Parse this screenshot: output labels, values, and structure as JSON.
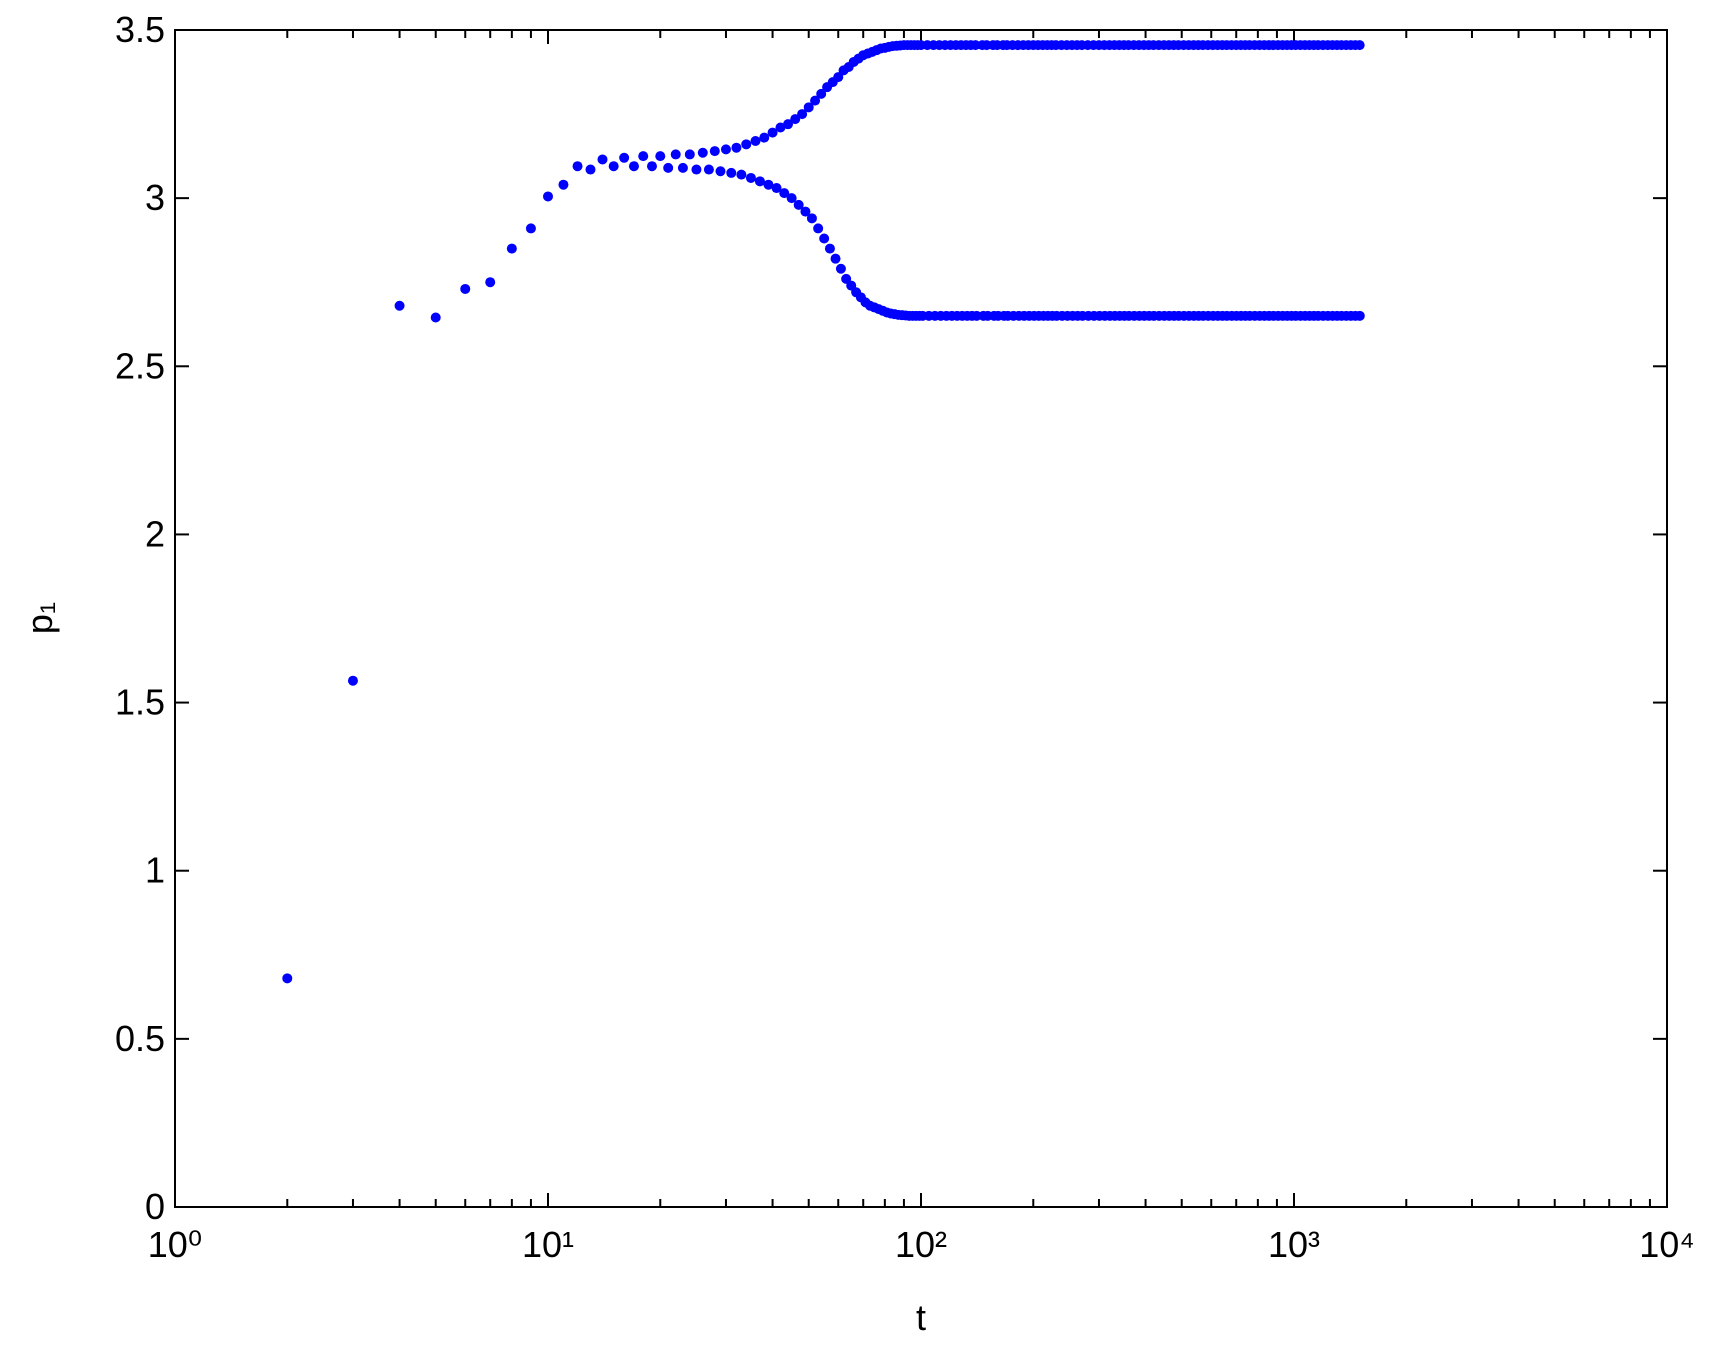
{
  "chart_data": {
    "type": "scatter",
    "xlabel": "t",
    "ylabel": "p₁",
    "xscale": "log",
    "xlim": [
      1,
      10000
    ],
    "xticks": [
      {
        "value": 1,
        "label": "10⁰"
      },
      {
        "value": 10,
        "label": "10¹"
      },
      {
        "value": 100,
        "label": "10²"
      },
      {
        "value": 1000,
        "label": "10³"
      },
      {
        "value": 10000,
        "label": "10⁴"
      }
    ],
    "minor_ticks": true,
    "ylim": [
      0,
      3.5
    ],
    "yticks": [
      0,
      0.5,
      1,
      1.5,
      2,
      2.5,
      3,
      3.5
    ],
    "grid": false,
    "color": "#0000ff",
    "x": [
      2,
      3,
      4,
      5,
      6,
      7,
      8,
      9,
      10,
      11,
      12,
      13,
      14,
      15,
      16,
      17,
      18,
      19,
      20,
      21,
      22,
      23,
      24,
      25,
      26,
      27,
      28,
      29,
      30,
      31,
      32,
      33,
      34,
      35,
      36,
      37,
      38,
      39,
      40,
      41,
      42,
      43,
      44,
      45,
      46,
      47,
      48,
      49,
      50,
      51,
      52,
      53,
      54,
      55,
      56,
      57,
      58,
      59,
      60,
      61,
      62,
      63,
      64,
      65,
      66,
      67,
      68,
      69,
      70,
      71,
      72,
      73,
      74,
      75,
      76,
      77,
      78,
      79,
      80,
      81,
      82,
      83,
      84,
      85,
      86,
      87,
      88,
      89,
      90,
      91,
      92,
      93,
      94,
      95,
      96,
      97,
      98,
      99,
      100,
      101,
      104,
      105,
      108,
      109,
      112,
      113,
      116,
      117,
      120,
      121,
      124,
      125,
      128,
      129,
      132,
      133,
      136,
      137,
      140,
      141,
      146,
      147,
      150,
      151,
      156,
      157,
      160,
      161,
      166,
      167,
      170,
      171,
      176,
      177,
      182,
      183,
      188,
      189,
      194,
      195,
      200,
      201,
      206,
      207,
      212,
      213,
      218,
      219,
      224,
      225,
      230,
      231,
      238,
      239,
      246,
      247,
      254,
      255,
      262,
      263,
      270,
      271,
      280,
      281,
      290,
      291,
      300,
      301,
      310,
      311,
      320,
      321,
      330,
      331,
      340,
      341,
      350,
      351,
      360,
      361,
      372,
      373,
      384,
      385,
      396,
      397,
      408,
      409,
      420,
      421,
      434,
      435,
      448,
      449,
      462,
      463,
      476,
      477,
      490,
      491,
      506,
      507,
      522,
      523,
      538,
      539,
      554,
      555,
      570,
      571,
      588,
      589,
      606,
      607,
      624,
      625,
      642,
      643,
      660,
      661,
      680,
      681,
      700,
      701,
      720,
      721,
      740,
      741,
      760,
      761,
      784,
      785,
      808,
      809,
      832,
      833,
      856,
      857,
      880,
      881,
      906,
      907,
      932,
      933,
      958,
      959,
      984,
      985,
      1010,
      1011,
      1040,
      1041,
      1070,
      1071,
      1100,
      1101,
      1130,
      1131,
      1160,
      1161,
      1196,
      1197,
      1232,
      1233,
      1268,
      1269,
      1304,
      1305,
      1340,
      1341,
      1380,
      1381,
      1420,
      1421,
      1460,
      1461,
      1500,
      1501
    ],
    "values": [
      0.68,
      1.565,
      2.68,
      2.645,
      2.73,
      2.75,
      2.85,
      2.91,
      3.005,
      3.04,
      3.095,
      3.085,
      3.115,
      3.095,
      3.12,
      3.095,
      3.125,
      3.095,
      3.125,
      3.09,
      3.13,
      3.09,
      3.13,
      3.085,
      3.135,
      3.085,
      3.14,
      3.08,
      3.145,
      3.075,
      3.15,
      3.07,
      3.16,
      3.06,
      3.17,
      3.05,
      3.18,
      3.04,
      3.195,
      3.03,
      3.21,
      3.015,
      3.22,
      3.0,
      3.235,
      2.98,
      3.25,
      2.96,
      3.27,
      2.94,
      3.29,
      2.91,
      3.31,
      2.88,
      3.33,
      2.85,
      3.345,
      2.82,
      3.36,
      2.79,
      3.38,
      2.76,
      3.39,
      2.74,
      3.405,
      2.72,
      3.415,
      2.705,
      3.425,
      2.69,
      3.43,
      2.68,
      3.435,
      2.675,
      3.44,
      2.67,
      3.445,
      2.665,
      3.447,
      2.66,
      3.45,
      2.657,
      3.452,
      2.655,
      3.453,
      2.653,
      3.454,
      2.652,
      3.455,
      2.651,
      3.455,
      2.65,
      3.455,
      2.65,
      3.455,
      2.65,
      3.455,
      2.65,
      3.455,
      2.65,
      3.455,
      2.65,
      3.455,
      2.65,
      3.455,
      2.65,
      3.455,
      2.65,
      3.455,
      2.65,
      3.455,
      2.65,
      3.455,
      2.65,
      3.455,
      2.65,
      3.455,
      2.65,
      3.455,
      2.65,
      3.455,
      2.65,
      3.455,
      2.65,
      3.455,
      2.65,
      3.455,
      2.65,
      3.455,
      2.65,
      3.455,
      2.65,
      3.455,
      2.65,
      3.455,
      2.65,
      3.455,
      2.65,
      3.455,
      2.65,
      3.455,
      2.65,
      3.455,
      2.65,
      3.455,
      2.65,
      3.455,
      2.65,
      3.455,
      2.65,
      3.455,
      2.65,
      3.455,
      2.65,
      3.455,
      2.65,
      3.455,
      2.65,
      3.455,
      2.65,
      3.455,
      2.65,
      3.455,
      2.65,
      3.455,
      2.65,
      3.455,
      2.65,
      3.455,
      2.65,
      3.455,
      2.65,
      3.455,
      2.65,
      3.455,
      2.65,
      3.455,
      2.65,
      3.455,
      2.65,
      3.455,
      2.65,
      3.455,
      2.65,
      3.455,
      2.65,
      3.455,
      2.65,
      3.455,
      2.65,
      3.455,
      2.65,
      3.455,
      2.65,
      3.455,
      2.65,
      3.455,
      2.65,
      3.455,
      2.65,
      3.455,
      2.65,
      3.455,
      2.65,
      3.455,
      2.65,
      3.455,
      2.65,
      3.455,
      2.65,
      3.455,
      2.65,
      3.455,
      2.65,
      3.455,
      2.65,
      3.455,
      2.65,
      3.455,
      2.65,
      3.455,
      2.65,
      3.455,
      2.65,
      3.455,
      2.65,
      3.455,
      2.65,
      3.455,
      2.65,
      3.455,
      2.65,
      3.455,
      2.65,
      3.455,
      2.65,
      3.455,
      2.65,
      3.455,
      2.65,
      3.455,
      2.65,
      3.455,
      2.65,
      3.455,
      2.65,
      3.455,
      2.65,
      3.455,
      2.65,
      3.455,
      2.65,
      3.455,
      2.65,
      3.455,
      2.65,
      3.455,
      2.65,
      3.455,
      2.65,
      3.455,
      2.65,
      3.455,
      2.65,
      3.455,
      2.65,
      3.455,
      2.65,
      3.455,
      2.65,
      3.455,
      2.65,
      3.455,
      2.65,
      3.455,
      2.65,
      3.455,
      2.65
    ]
  }
}
